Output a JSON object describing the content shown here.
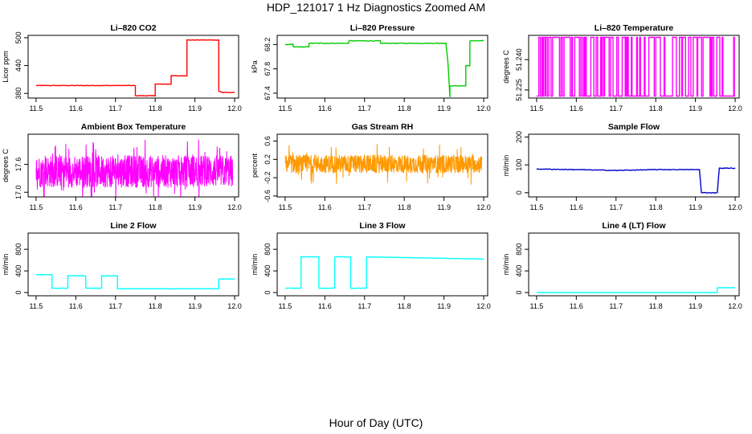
{
  "figure": {
    "title": "HDP_121017  1 Hz Diagnostics Zoomed AM",
    "xlabel": "Hour of Day (UTC)"
  },
  "chart_data": [
    {
      "type": "line",
      "title": "Li–820 CO2",
      "ylabel": "Licor ppm",
      "color": "#ff0000",
      "xlim": [
        11.48,
        12.01
      ],
      "ylim": [
        370,
        505
      ],
      "xticks": [
        "11.5",
        "11.6",
        "11.7",
        "11.8",
        "11.9",
        "12.0"
      ],
      "yticks": [
        "380",
        "440",
        "500"
      ],
      "noise": 0.5,
      "series": [
        {
          "x": [
            11.5,
            11.75,
            11.75,
            11.8,
            11.8,
            11.84,
            11.84,
            11.88,
            11.88,
            11.96,
            11.96,
            11.97,
            12.0
          ],
          "y": [
            397,
            397,
            375,
            375,
            400,
            400,
            418,
            418,
            495,
            495,
            385,
            382,
            382
          ]
        }
      ]
    },
    {
      "type": "line",
      "title": "Li–820 Pressure",
      "ylabel": "kPa",
      "color": "#00cc00",
      "xlim": [
        11.48,
        12.01
      ],
      "ylim": [
        67.32,
        68.35
      ],
      "xticks": [
        "11.5",
        "11.6",
        "11.7",
        "11.8",
        "11.9",
        "12.0"
      ],
      "yticks": [
        "67.4",
        "67.8",
        "68.2"
      ],
      "noise": 0.005,
      "series": [
        {
          "x": [
            11.5,
            11.52,
            11.52,
            11.56,
            11.56,
            11.66,
            11.66,
            11.74,
            11.74,
            11.905,
            11.91,
            11.915,
            11.915,
            11.955,
            11.955,
            11.965,
            11.965,
            12.0
          ],
          "y": [
            68.2,
            68.2,
            68.16,
            68.16,
            68.22,
            68.22,
            68.26,
            68.26,
            68.22,
            68.22,
            67.9,
            67.34,
            67.52,
            67.52,
            67.85,
            67.85,
            68.26,
            68.26
          ]
        }
      ]
    },
    {
      "type": "line",
      "title": "Li–820 Temperature",
      "ylabel": "degrees C",
      "color": "#ff00ff",
      "xlim": [
        11.48,
        12.01
      ],
      "ylim": [
        51.221,
        51.252
      ],
      "xticks": [
        "11.5",
        "11.6",
        "11.7",
        "11.8",
        "11.9",
        "12.0"
      ],
      "yticks": [
        "51.225",
        "51.240"
      ],
      "toggle": {
        "low": 51.222,
        "high": 51.251,
        "density": 0.35
      },
      "series": [
        {
          "x": [
            11.5,
            12.0
          ],
          "y": [
            51.222,
            51.251
          ]
        }
      ]
    },
    {
      "type": "line",
      "title": "Ambient Box Temperature",
      "ylabel": "degrees C",
      "color": "#ff00ff",
      "xlim": [
        11.48,
        12.01
      ],
      "ylim": [
        16.9,
        18.25
      ],
      "xticks": [
        "11.5",
        "11.6",
        "11.7",
        "11.8",
        "11.9",
        "12.0"
      ],
      "yticks": [
        "17.0",
        "17.6"
      ],
      "band": {
        "center": 17.45,
        "spread": 0.35,
        "spikes": 0.7
      },
      "series": [
        {
          "x": [
            11.5,
            12.0
          ],
          "y": [
            17.0,
            18.1
          ]
        }
      ]
    },
    {
      "type": "line",
      "title": "Gas Stream RH",
      "ylabel": "percent",
      "color": "#ff9900",
      "xlim": [
        11.48,
        12.01
      ],
      "ylim": [
        -0.62,
        0.75
      ],
      "xticks": [
        "11.5",
        "11.6",
        "11.7",
        "11.8",
        "11.9",
        "12.0"
      ],
      "yticks": [
        "-0.6",
        "-0.2",
        "0.2",
        "0.6"
      ],
      "band": {
        "center": 0.1,
        "spread": 0.2,
        "spikes": 0.45
      },
      "series": [
        {
          "x": [
            11.5,
            12.0
          ],
          "y": [
            -0.6,
            0.65
          ]
        }
      ]
    },
    {
      "type": "line",
      "title": "Sample Flow",
      "ylabel": "ml/min",
      "color": "#0000cc",
      "xlim": [
        11.48,
        12.01
      ],
      "ylim": [
        -15,
        210
      ],
      "xticks": [
        "11.5",
        "11.6",
        "11.7",
        "11.8",
        "11.9",
        "12.0"
      ],
      "yticks": [
        "0",
        "100",
        "200"
      ],
      "noise": 1.2,
      "series": [
        {
          "x": [
            11.5,
            11.6,
            11.7,
            11.8,
            11.91,
            11.915,
            11.955,
            11.96,
            12.0
          ],
          "y": [
            85,
            83,
            80,
            83,
            83,
            0,
            0,
            88,
            88
          ]
        }
      ]
    },
    {
      "type": "line",
      "title": "Line 2 Flow",
      "ylabel": "ml/min",
      "color": "#00ffff",
      "xlim": [
        11.48,
        12.01
      ],
      "ylim": [
        -60,
        1100
      ],
      "xticks": [
        "11.5",
        "11.6",
        "11.7",
        "11.8",
        "11.9",
        "12.0"
      ],
      "yticks": [
        "0",
        "400",
        "800"
      ],
      "noise": 4,
      "series": [
        {
          "x": [
            11.5,
            11.54,
            11.54,
            11.58,
            11.58,
            11.625,
            11.625,
            11.665,
            11.665,
            11.705,
            11.705,
            11.96,
            11.96,
            12.0
          ],
          "y": [
            330,
            330,
            80,
            80,
            310,
            310,
            80,
            80,
            310,
            310,
            70,
            70,
            250,
            250
          ]
        }
      ]
    },
    {
      "type": "line",
      "title": "Line 3 Flow",
      "ylabel": "ml/min",
      "color": "#00ffff",
      "xlim": [
        11.48,
        12.01
      ],
      "ylim": [
        -60,
        1100
      ],
      "xticks": [
        "11.5",
        "11.6",
        "11.7",
        "11.8",
        "11.9",
        "12.0"
      ],
      "yticks": [
        "0",
        "400",
        "800"
      ],
      "noise": 4,
      "series": [
        {
          "x": [
            11.5,
            11.54,
            11.54,
            11.585,
            11.585,
            11.625,
            11.625,
            11.665,
            11.665,
            11.705,
            11.705,
            12.0
          ],
          "y": [
            80,
            80,
            660,
            660,
            80,
            80,
            660,
            660,
            80,
            80,
            660,
            620
          ]
        }
      ]
    },
    {
      "type": "line",
      "title": "Line 4 (LT) Flow",
      "ylabel": "ml/min",
      "color": "#00ffff",
      "xlim": [
        11.48,
        12.01
      ],
      "ylim": [
        -60,
        1100
      ],
      "xticks": [
        "11.5",
        "11.6",
        "11.7",
        "11.8",
        "11.9",
        "12.0"
      ],
      "yticks": [
        "0",
        "400",
        "800"
      ],
      "noise": 1,
      "series": [
        {
          "x": [
            11.5,
            11.955,
            11.955,
            12.0
          ],
          "y": [
            0,
            0,
            90,
            90
          ]
        }
      ]
    }
  ]
}
